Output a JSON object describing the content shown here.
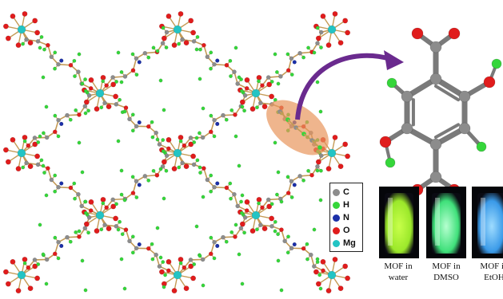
{
  "structure": {
    "atom_colors": {
      "carbon": "#8c8c8c",
      "hydrogen": "#35d63a",
      "nitrogen": "#1b2fa8",
      "oxygen": "#e01c1c",
      "magnesium": "#23c4c4",
      "bond": "#c49a55"
    },
    "highlight_color": "#e8955c",
    "arrow_color": "#6a2a8e"
  },
  "legend": {
    "items": [
      {
        "symbol": "C",
        "color": "#8c8c8c"
      },
      {
        "symbol": "H",
        "color": "#35d63a"
      },
      {
        "symbol": "N",
        "color": "#1b2fa8"
      },
      {
        "symbol": "O",
        "color": "#e01c1c"
      },
      {
        "symbol": "Mg",
        "color": "#23c4c4"
      }
    ]
  },
  "vials": [
    {
      "caption": "MOF in\nwater",
      "glow": "#9be82a",
      "core": "#c8ff4a"
    },
    {
      "caption": "MOF in\nDMSO",
      "glow": "#3fe07a",
      "core": "#b6ffd0"
    },
    {
      "caption": "MOF in\nEtOH",
      "glow": "#3a9ae8",
      "core": "#9fdcff"
    }
  ]
}
